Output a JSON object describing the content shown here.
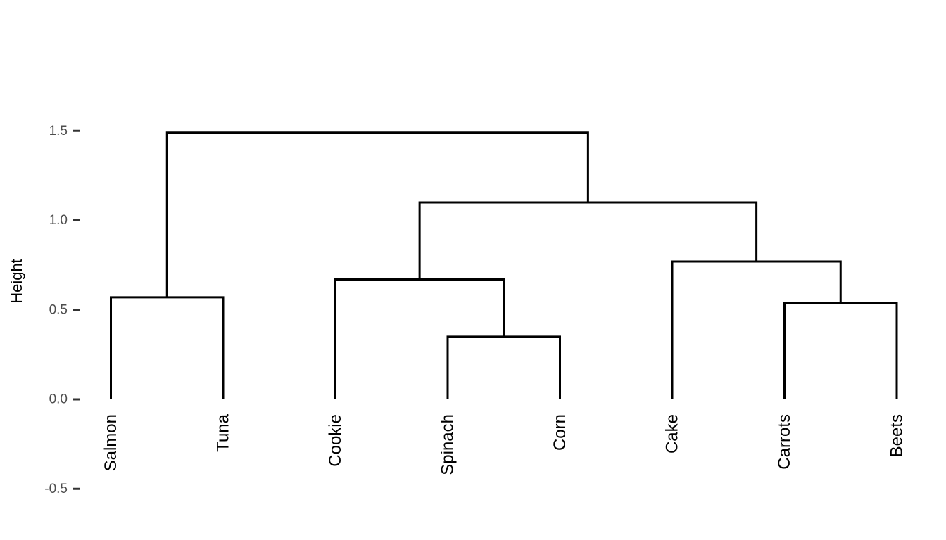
{
  "chart_data": {
    "type": "dendrogram",
    "orientation": "vertical",
    "title": "",
    "xlabel": "",
    "ylabel": "Height",
    "ylim": [
      -0.5,
      1.5
    ],
    "grid": false,
    "legend": false,
    "y_ticks": [
      {
        "value": -0.5,
        "label": "-0.5"
      },
      {
        "value": 0.0,
        "label": "0.0"
      },
      {
        "value": 0.5,
        "label": "0.5"
      },
      {
        "value": 1.0,
        "label": "1.0"
      },
      {
        "value": 1.5,
        "label": "1.5"
      }
    ],
    "leaves": [
      "Salmon",
      "Tuna",
      "Cookie",
      "Spinach",
      "Corn",
      "Cake",
      "Carrots",
      "Beets"
    ],
    "leaf_label_rotation_deg": -90,
    "merges": [
      {
        "id": "node-salmon-tuna",
        "left": "Salmon",
        "right": "Tuna",
        "height": 0.57
      },
      {
        "id": "node-spinach-corn",
        "left": "Spinach",
        "right": "Corn",
        "height": 0.35
      },
      {
        "id": "node-cookie-spinach-corn",
        "left": "Cookie",
        "right": "node-spinach-corn",
        "height": 0.67
      },
      {
        "id": "node-carrots-beets",
        "left": "Carrots",
        "right": "Beets",
        "height": 0.54
      },
      {
        "id": "node-cake-carrots-beets",
        "left": "Cake",
        "right": "node-carrots-beets",
        "height": 0.77
      },
      {
        "id": "node-right-cluster",
        "left": "node-cookie-spinach-corn",
        "right": "node-cake-carrots-beets",
        "height": 1.1
      },
      {
        "id": "node-root",
        "left": "node-salmon-tuna",
        "right": "node-right-cluster",
        "height": 1.49
      }
    ],
    "colors": {
      "segments": "#000000",
      "leaf_labels": "#000000",
      "axis_title": "#000000",
      "tick_labels": "#4D4D4D",
      "tick_marks": "#333333",
      "background": "#FFFFFF"
    }
  }
}
